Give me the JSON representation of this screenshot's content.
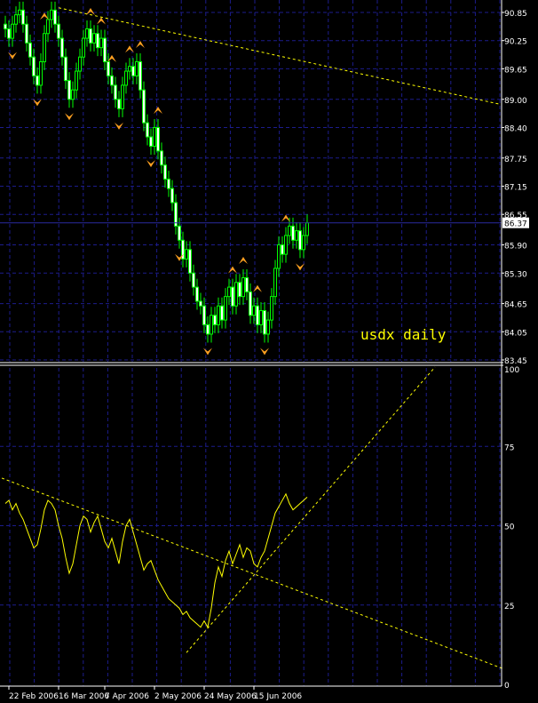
{
  "chart_data": [
    {
      "type": "candlestick",
      "annotation": "usdx daily",
      "yticks": [
        "90.85",
        "90.25",
        "89.65",
        "89.00",
        "88.40",
        "87.75",
        "87.15",
        "86.55",
        "85.90",
        "85.30",
        "84.65",
        "84.05",
        "83.45"
      ],
      "ylim": [
        83.45,
        90.85
      ],
      "current_price": "86.37",
      "grid": true,
      "colors": {
        "background": "#000000",
        "grid": "#1c1c8c",
        "wick": "#00ff00",
        "bear_body": "#ffffff",
        "bull_body": "#000000",
        "fractal": "#ffa020",
        "trendline": "#ffff00",
        "price_label_bg": "#ffffff"
      },
      "close": [
        90.5,
        90.3,
        90.6,
        90.8,
        90.9,
        90.6,
        90.2,
        89.9,
        89.5,
        89.3,
        89.8,
        90.4,
        90.7,
        90.9,
        90.6,
        90.3,
        89.9,
        89.4,
        89.0,
        89.2,
        89.6,
        89.9,
        90.3,
        90.5,
        90.2,
        90.4,
        90.1,
        90.3,
        89.8,
        89.5,
        89.3,
        89.0,
        88.8,
        89.3,
        89.6,
        89.7,
        89.5,
        89.8,
        89.2,
        88.5,
        88.2,
        88.0,
        88.4,
        87.9,
        87.6,
        87.3,
        87.1,
        86.8,
        86.3,
        86.0,
        85.6,
        85.8,
        85.3,
        85.0,
        84.7,
        84.6,
        84.2,
        84.0,
        84.4,
        84.2,
        84.6,
        84.3,
        84.8,
        85.0,
        84.6,
        85.1,
        84.8,
        85.2,
        84.9,
        84.4,
        84.6,
        84.2,
        84.5,
        84.0,
        84.3,
        84.8,
        85.4,
        85.9,
        85.7,
        86.1,
        86.3,
        86.0,
        86.2,
        85.8,
        86.1,
        86.37
      ],
      "fractals_up": [
        4,
        11,
        24,
        27,
        30,
        35,
        38,
        43,
        64,
        67,
        71,
        79
      ],
      "fractals_down": [
        2,
        9,
        18,
        32,
        41,
        49,
        57,
        73,
        83
      ],
      "trendline": {
        "from": [
          15,
          90.95
        ],
        "to": [
          139,
          88.9
        ]
      }
    },
    {
      "type": "line",
      "yticks": [
        "100",
        "75",
        "50",
        "25",
        "0"
      ],
      "ylim": [
        0,
        100
      ],
      "grid": true,
      "values": [
        57,
        58,
        55,
        57,
        54,
        52,
        49,
        46,
        43,
        44,
        49,
        55,
        58,
        57,
        55,
        50,
        46,
        40,
        35,
        38,
        44,
        50,
        53,
        52,
        48,
        51,
        53,
        49,
        45,
        43,
        46,
        42,
        38,
        45,
        50,
        52,
        48,
        44,
        40,
        36,
        38,
        39,
        36,
        33,
        31,
        29,
        27,
        26,
        25,
        24,
        22,
        23,
        21,
        20,
        19,
        18,
        20,
        18,
        24,
        32,
        37,
        34,
        39,
        42,
        38,
        41,
        44,
        40,
        43,
        42,
        38,
        37,
        40,
        42,
        46,
        50,
        54,
        56,
        58,
        60,
        57,
        55,
        56,
        57,
        58,
        59
      ],
      "trendlines": [
        {
          "from": [
            -1,
            65
          ],
          "to": [
            140,
            5
          ]
        },
        {
          "from": [
            51,
            10
          ],
          "to": [
            121,
            100
          ]
        }
      ],
      "xticks": [
        "22 Feb 2006",
        "16 Mar 2006",
        "7 Apr 2006",
        "2 May 2006",
        "24 May 2006",
        "15 Jun 2006"
      ],
      "xtick_bars": [
        1,
        15,
        28,
        42,
        56,
        70
      ]
    }
  ]
}
